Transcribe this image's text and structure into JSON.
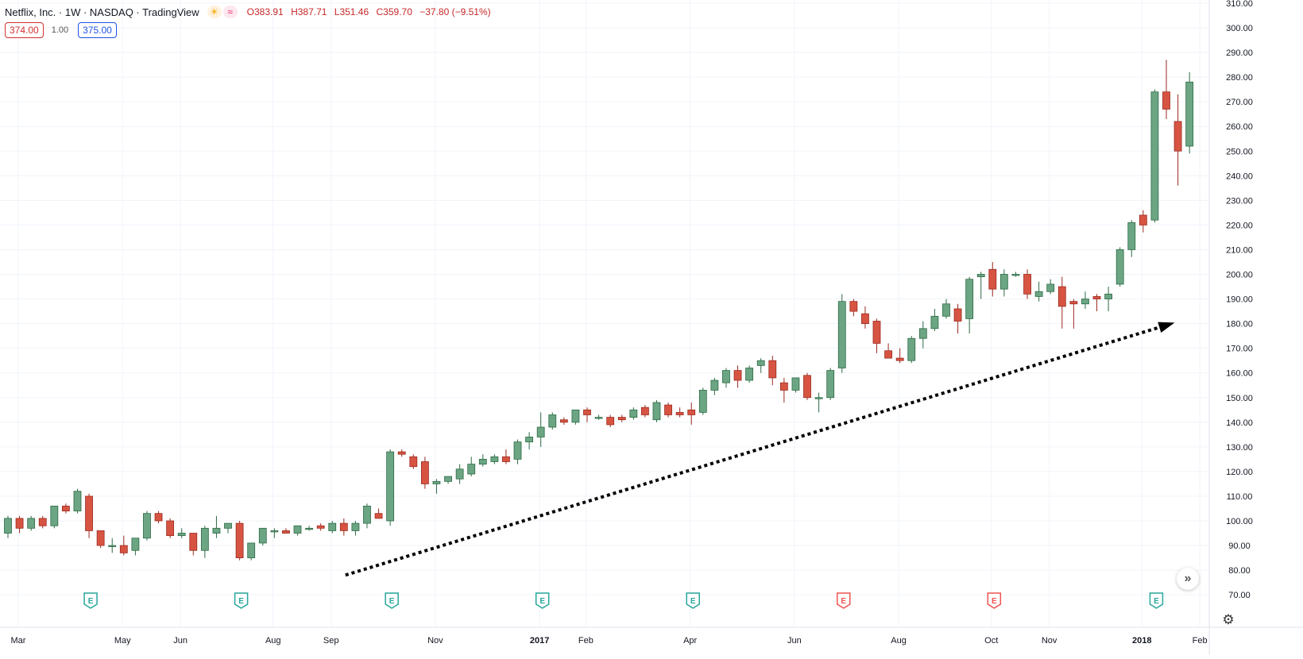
{
  "legend": {
    "title": "Netflix, Inc. · 1W · NASDAQ · TradingView",
    "sun_icon": "☀",
    "wave_icon": "≈",
    "open": "O383.91",
    "high": "H387.71",
    "low": "L351.46",
    "close": "C359.70",
    "change": "−37.80 (−9.51%)"
  },
  "quote": {
    "bid": "374.00",
    "spread": "1.00",
    "ask": "375.00"
  },
  "icons": {
    "scroll": "scroll-to-latest-icon",
    "settings": "gear-icon",
    "earnings": "earnings-e-icon"
  },
  "colors": {
    "up": "#6ba583",
    "down": "#d75442",
    "arrow": "#000000",
    "grid": "#f0f3fa",
    "earn_future": "#26a69a",
    "earn_past": "#ef5350"
  },
  "chart_data": {
    "type": "candlestick",
    "interval": "1W",
    "ylim": [
      66,
      312
    ],
    "y_ticks": [
      "310.00",
      "300.00",
      "290.00",
      "280.00",
      "270.00",
      "260.00",
      "250.00",
      "240.00",
      "230.00",
      "220.00",
      "210.00",
      "200.00",
      "190.00",
      "180.00",
      "170.00",
      "160.00",
      "150.00",
      "140.00",
      "130.00",
      "120.00",
      "110.00",
      "100.00",
      "90.00",
      "80.00",
      "70.00"
    ],
    "x_ticks": [
      {
        "label": "Mar",
        "index": 0,
        "bold": false
      },
      {
        "label": "May",
        "index": 9,
        "bold": false
      },
      {
        "label": "Jun",
        "index": 14,
        "bold": false
      },
      {
        "label": "Aug",
        "index": 22,
        "bold": false
      },
      {
        "label": "Sep",
        "index": 27,
        "bold": false
      },
      {
        "label": "Nov",
        "index": 36,
        "bold": false
      },
      {
        "label": "2017",
        "index": 45,
        "bold": true
      },
      {
        "label": "Feb",
        "index": 49,
        "bold": false
      },
      {
        "label": "Apr",
        "index": 58,
        "bold": false
      },
      {
        "label": "Jun",
        "index": 67,
        "bold": false
      },
      {
        "label": "Aug",
        "index": 76,
        "bold": false
      },
      {
        "label": "Oct",
        "index": 84,
        "bold": false
      },
      {
        "label": "Nov",
        "index": 89,
        "bold": false
      },
      {
        "label": "2018",
        "index": 97,
        "bold": true
      },
      {
        "label": "Feb",
        "index": 102,
        "bold": false
      }
    ],
    "earnings": [
      {
        "index": 7,
        "label": "E",
        "status": "future"
      },
      {
        "index": 20,
        "label": "E",
        "status": "future"
      },
      {
        "index": 33,
        "label": "E",
        "status": "future"
      },
      {
        "index": 46,
        "label": "E",
        "status": "future"
      },
      {
        "index": 59,
        "label": "E",
        "status": "future"
      },
      {
        "index": 72,
        "label": "E",
        "status": "past"
      },
      {
        "index": 85,
        "label": "E",
        "status": "past"
      },
      {
        "index": 99,
        "label": "E",
        "status": "future"
      }
    ],
    "trend_arrow": {
      "from": {
        "index": 29,
        "price": 78
      },
      "to": {
        "index": 101,
        "price": 180
      },
      "style": "dotted"
    },
    "candles": [
      [
        95,
        102,
        93,
        101
      ],
      [
        101,
        102,
        95,
        97
      ],
      [
        97,
        102,
        96,
        101
      ],
      [
        101,
        102,
        97,
        98
      ],
      [
        98,
        106,
        97,
        106
      ],
      [
        106,
        107,
        103,
        104
      ],
      [
        104,
        113,
        103,
        112
      ],
      [
        110,
        111,
        93,
        96
      ],
      [
        96,
        96,
        89,
        90
      ],
      [
        90,
        93,
        87,
        90
      ],
      [
        90,
        94,
        86,
        87
      ],
      [
        88,
        93,
        86,
        93
      ],
      [
        93,
        104,
        92,
        103
      ],
      [
        103,
        104,
        99,
        100
      ],
      [
        100,
        101,
        93,
        94
      ],
      [
        94,
        97,
        93,
        95
      ],
      [
        95,
        95,
        86,
        88
      ],
      [
        88,
        98,
        85,
        97
      ],
      [
        95,
        102,
        93,
        97
      ],
      [
        97,
        99,
        95,
        99
      ],
      [
        99,
        100,
        84,
        85
      ],
      [
        85,
        90,
        84,
        91
      ],
      [
        91,
        97,
        90,
        97
      ],
      [
        96,
        97,
        93,
        96
      ],
      [
        96,
        97,
        95,
        95
      ],
      [
        95,
        98,
        94,
        98
      ],
      [
        97,
        98,
        96,
        97
      ],
      [
        98,
        99,
        96,
        97
      ],
      [
        96,
        100,
        95,
        99
      ],
      [
        99,
        101,
        94,
        96
      ],
      [
        96,
        100,
        94,
        99
      ],
      [
        99,
        107,
        97,
        106
      ],
      [
        103,
        105,
        101,
        101
      ],
      [
        100,
        129,
        98,
        128
      ],
      [
        128,
        129,
        126,
        127
      ],
      [
        126,
        127,
        121,
        122
      ],
      [
        124,
        126,
        113,
        115
      ],
      [
        115,
        117,
        111,
        116
      ],
      [
        116,
        118,
        115,
        118
      ],
      [
        117,
        123,
        115,
        121
      ],
      [
        119,
        126,
        118,
        123
      ],
      [
        123,
        127,
        122,
        125
      ],
      [
        124,
        127,
        123,
        126
      ],
      [
        126,
        129,
        123,
        124
      ],
      [
        125,
        133,
        123,
        132
      ],
      [
        132,
        136,
        129,
        134
      ],
      [
        134,
        144,
        130,
        138
      ],
      [
        138,
        144,
        137,
        143
      ],
      [
        141,
        142,
        139,
        140
      ],
      [
        140,
        145,
        139,
        145
      ],
      [
        145,
        146,
        140,
        143
      ],
      [
        142,
        143,
        141,
        142
      ],
      [
        142,
        143,
        138,
        139
      ],
      [
        142,
        143,
        140,
        141
      ],
      [
        142,
        146,
        141,
        145
      ],
      [
        146,
        147,
        142,
        143
      ],
      [
        141,
        149,
        140,
        148
      ],
      [
        147,
        148,
        142,
        143
      ],
      [
        144,
        146,
        142,
        143
      ],
      [
        145,
        148,
        139,
        143
      ],
      [
        144,
        154,
        143,
        153
      ],
      [
        153,
        158,
        151,
        157
      ],
      [
        156,
        162,
        154,
        161
      ],
      [
        161,
        163,
        154,
        157
      ],
      [
        157,
        163,
        156,
        162
      ],
      [
        163,
        166,
        160,
        165
      ],
      [
        165,
        167,
        155,
        158
      ],
      [
        156,
        158,
        148,
        153
      ],
      [
        153,
        158,
        152,
        158
      ],
      [
        159,
        160,
        149,
        150
      ],
      [
        150,
        152,
        144,
        150
      ],
      [
        150,
        162,
        149,
        161
      ],
      [
        162,
        192,
        160,
        189
      ],
      [
        189,
        190,
        183,
        185
      ],
      [
        184,
        187,
        178,
        180
      ],
      [
        181,
        182,
        168,
        172
      ],
      [
        169,
        172,
        166,
        166
      ],
      [
        166,
        170,
        164,
        165
      ],
      [
        165,
        175,
        164,
        174
      ],
      [
        174,
        181,
        170,
        178
      ],
      [
        178,
        186,
        177,
        183
      ],
      [
        183,
        190,
        182,
        188
      ],
      [
        186,
        188,
        176,
        181
      ],
      [
        182,
        199,
        176,
        198
      ],
      [
        199,
        201,
        190,
        200
      ],
      [
        202,
        205,
        191,
        194
      ],
      [
        194,
        202,
        191,
        200
      ],
      [
        200,
        201,
        199,
        200
      ],
      [
        200,
        202,
        190,
        192
      ],
      [
        191,
        197,
        189,
        193
      ],
      [
        193,
        198,
        192,
        196
      ],
      [
        195,
        199,
        178,
        187
      ],
      [
        189,
        190,
        178,
        188
      ],
      [
        188,
        193,
        186,
        190
      ],
      [
        191,
        192,
        185,
        190
      ],
      [
        190,
        195,
        185,
        192
      ],
      [
        196,
        211,
        195,
        210
      ],
      [
        210,
        222,
        207,
        221
      ],
      [
        224,
        226,
        217,
        220
      ],
      [
        222,
        275,
        221,
        274
      ],
      [
        274,
        287,
        263,
        267
      ],
      [
        262,
        273,
        236,
        250
      ],
      [
        252,
        282,
        249,
        278
      ]
    ]
  }
}
